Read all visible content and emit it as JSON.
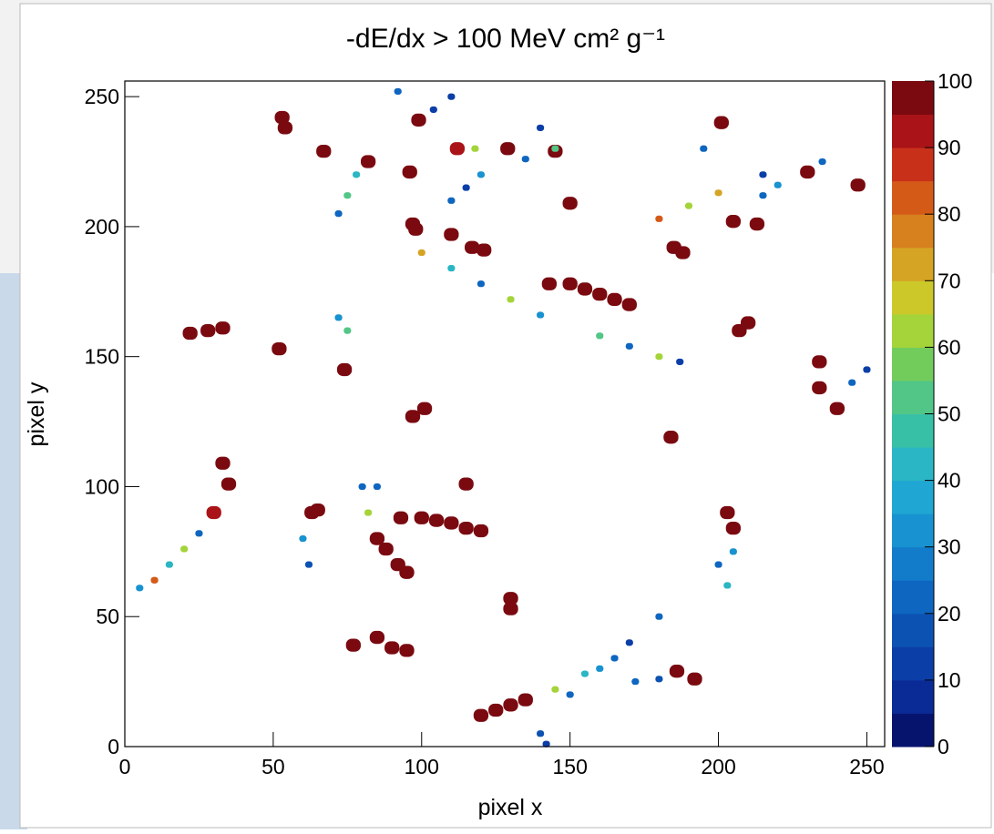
{
  "chart_data": {
    "type": "heatmap",
    "title": "-dE/dx > 100 MeV cm² g⁻¹",
    "x_label": "pixel x",
    "y_label": "pixel y",
    "xlim": [
      0,
      256
    ],
    "ylim": [
      0,
      256
    ],
    "zlim": [
      0,
      100
    ],
    "xticks": [
      0,
      50,
      100,
      150,
      200,
      250
    ],
    "yticks": [
      0,
      50,
      100,
      150,
      200,
      250
    ],
    "zticks": [
      0,
      10,
      20,
      30,
      40,
      50,
      60,
      70,
      80,
      90,
      100
    ],
    "palette": [
      "#06146e",
      "#0a2a96",
      "#0c3ea8",
      "#0c52b2",
      "#0e66c0",
      "#127cca",
      "#1892d0",
      "#20a6d2",
      "#2ab6c4",
      "#38c0a6",
      "#52c686",
      "#72cc5c",
      "#a4d43a",
      "#ccc82a",
      "#d6a424",
      "#d6801e",
      "#d45a18",
      "#c8301a",
      "#aa1418",
      "#7a0a10"
    ],
    "x": [
      53,
      54,
      67,
      82,
      99,
      96,
      110,
      98,
      97,
      121,
      117,
      129,
      145,
      150,
      150,
      155,
      160,
      165,
      170,
      143,
      188,
      185,
      205,
      213,
      230,
      247,
      210,
      207,
      22,
      28,
      33,
      52,
      74,
      97,
      101,
      184,
      33,
      35,
      115,
      65,
      63,
      93,
      100,
      105,
      110,
      115,
      120,
      88,
      92,
      95,
      85,
      130,
      130,
      77,
      85,
      90,
      95,
      186,
      192,
      120,
      125,
      130,
      135,
      205,
      203,
      234,
      234,
      240,
      201,
      5,
      10,
      15,
      20,
      25,
      30,
      100,
      110,
      120,
      130,
      140,
      160,
      170,
      180,
      187,
      180,
      190,
      200,
      215,
      220,
      110,
      115,
      120,
      112,
      118,
      140,
      135,
      145,
      150,
      160,
      170,
      180,
      145,
      155,
      165,
      140,
      142,
      172,
      180,
      250,
      245,
      78,
      75,
      72,
      104,
      110,
      92,
      75,
      72,
      200,
      203,
      205,
      80,
      82,
      60,
      62,
      85,
      195,
      235,
      215
    ],
    "y": [
      242,
      238,
      229,
      225,
      241,
      221,
      197,
      199,
      201,
      191,
      192,
      230,
      229,
      209,
      178,
      176,
      174,
      172,
      170,
      178,
      190,
      192,
      202,
      201,
      221,
      216,
      163,
      160,
      159,
      160,
      161,
      153,
      145,
      127,
      130,
      119,
      109,
      101,
      101,
      91,
      90,
      88,
      88,
      87,
      86,
      84,
      83,
      76,
      70,
      67,
      80,
      57,
      53,
      39,
      42,
      38,
      37,
      29,
      26,
      12,
      14,
      16,
      18,
      84,
      90,
      148,
      138,
      130,
      240,
      61,
      64,
      70,
      76,
      82,
      90,
      190,
      184,
      178,
      172,
      166,
      158,
      154,
      150,
      148,
      203,
      208,
      213,
      212,
      216,
      210,
      215,
      220,
      230,
      230,
      238,
      226,
      230,
      20,
      30,
      40,
      50,
      22,
      28,
      34,
      5,
      1,
      25,
      26,
      145,
      140,
      220,
      212,
      205,
      245,
      250,
      252,
      160,
      165,
      70,
      62,
      75,
      100,
      90,
      80,
      70,
      100,
      230,
      225,
      220
    ],
    "values": [
      100,
      100,
      100,
      100,
      100,
      100,
      100,
      100,
      100,
      100,
      100,
      100,
      100,
      100,
      100,
      100,
      100,
      100,
      100,
      100,
      100,
      100,
      100,
      100,
      100,
      100,
      100,
      100,
      100,
      100,
      100,
      100,
      100,
      100,
      100,
      100,
      100,
      100,
      100,
      100,
      100,
      100,
      100,
      100,
      100,
      100,
      100,
      100,
      100,
      100,
      100,
      100,
      100,
      100,
      100,
      100,
      100,
      100,
      100,
      100,
      100,
      100,
      100,
      100,
      100,
      100,
      100,
      100,
      100,
      30,
      80,
      40,
      60,
      20,
      90,
      70,
      40,
      20,
      60,
      30,
      50,
      20,
      60,
      10,
      80,
      60,
      70,
      20,
      30,
      20,
      10,
      30,
      90,
      60,
      10,
      20,
      50,
      20,
      30,
      10,
      20,
      60,
      40,
      20,
      15,
      10,
      20,
      15,
      10,
      20,
      40,
      50,
      20,
      10,
      10,
      20,
      50,
      30,
      20,
      40,
      30,
      20,
      60,
      30,
      15,
      20,
      20,
      20,
      10
    ]
  }
}
